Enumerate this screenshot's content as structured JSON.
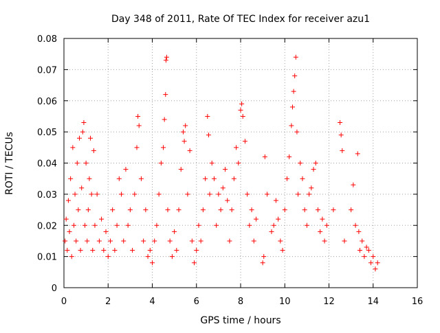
{
  "chart_data": {
    "type": "scatter",
    "title": "Day 348 of 2011, Rate Of TEC Index for receiver azu1",
    "xlabel": "GPS time / hours",
    "ylabel": "ROTI / TECUs",
    "xlim": [
      0,
      16
    ],
    "ylim": [
      0,
      0.08
    ],
    "xticks": [
      0,
      2,
      4,
      6,
      8,
      10,
      12,
      14,
      16
    ],
    "yticks": [
      0,
      0.01,
      0.02,
      0.03,
      0.04,
      0.05,
      0.06,
      0.07,
      0.08
    ],
    "xtick_labels": [
      "0",
      "2",
      "4",
      "6",
      "8",
      "10",
      "12",
      "14",
      "16"
    ],
    "ytick_labels": [
      "0",
      "0.01",
      "0.02",
      "0.03",
      "0.04",
      "0.05",
      "0.06",
      "0.07",
      "0.08"
    ],
    "grid": true,
    "marker": "+",
    "series": [
      {
        "name": "ROTI",
        "color": "#ff0000",
        "points": [
          [
            0.05,
            0.015
          ],
          [
            0.1,
            0.022
          ],
          [
            0.15,
            0.012
          ],
          [
            0.2,
            0.028
          ],
          [
            0.25,
            0.018
          ],
          [
            0.3,
            0.035
          ],
          [
            0.35,
            0.01
          ],
          [
            0.4,
            0.045
          ],
          [
            0.45,
            0.02
          ],
          [
            0.5,
            0.03
          ],
          [
            0.55,
            0.015
          ],
          [
            0.6,
            0.04
          ],
          [
            0.65,
            0.025
          ],
          [
            0.7,
            0.048
          ],
          [
            0.75,
            0.012
          ],
          [
            0.8,
            0.032
          ],
          [
            0.85,
            0.05
          ],
          [
            0.9,
            0.053
          ],
          [
            0.95,
            0.02
          ],
          [
            1.0,
            0.04
          ],
          [
            1.05,
            0.015
          ],
          [
            1.1,
            0.025
          ],
          [
            1.15,
            0.035
          ],
          [
            1.2,
            0.048
          ],
          [
            1.25,
            0.03
          ],
          [
            1.3,
            0.012
          ],
          [
            1.35,
            0.044
          ],
          [
            1.4,
            0.02
          ],
          [
            1.5,
            0.03
          ],
          [
            1.6,
            0.015
          ],
          [
            1.7,
            0.022
          ],
          [
            1.8,
            0.012
          ],
          [
            1.9,
            0.018
          ],
          [
            2.0,
            0.01
          ],
          [
            2.1,
            0.015
          ],
          [
            2.2,
            0.025
          ],
          [
            2.3,
            0.012
          ],
          [
            2.4,
            0.02
          ],
          [
            2.5,
            0.035
          ],
          [
            2.6,
            0.03
          ],
          [
            2.7,
            0.015
          ],
          [
            2.8,
            0.038
          ],
          [
            2.9,
            0.02
          ],
          [
            3.0,
            0.025
          ],
          [
            3.1,
            0.012
          ],
          [
            3.2,
            0.03
          ],
          [
            3.3,
            0.045
          ],
          [
            3.35,
            0.055
          ],
          [
            3.4,
            0.052
          ],
          [
            3.5,
            0.035
          ],
          [
            3.6,
            0.015
          ],
          [
            3.7,
            0.025
          ],
          [
            3.8,
            0.01
          ],
          [
            3.9,
            0.012
          ],
          [
            4.0,
            0.008
          ],
          [
            4.1,
            0.015
          ],
          [
            4.2,
            0.02
          ],
          [
            4.3,
            0.03
          ],
          [
            4.4,
            0.04
          ],
          [
            4.5,
            0.045
          ],
          [
            4.55,
            0.054
          ],
          [
            4.6,
            0.062
          ],
          [
            4.62,
            0.073
          ],
          [
            4.65,
            0.074
          ],
          [
            4.7,
            0.025
          ],
          [
            4.8,
            0.015
          ],
          [
            4.9,
            0.01
          ],
          [
            5.0,
            0.018
          ],
          [
            5.1,
            0.012
          ],
          [
            5.2,
            0.025
          ],
          [
            5.3,
            0.038
          ],
          [
            5.4,
            0.05
          ],
          [
            5.45,
            0.047
          ],
          [
            5.5,
            0.052
          ],
          [
            5.6,
            0.03
          ],
          [
            5.7,
            0.044
          ],
          [
            5.8,
            0.015
          ],
          [
            5.9,
            0.008
          ],
          [
            6.0,
            0.012
          ],
          [
            6.1,
            0.02
          ],
          [
            6.2,
            0.015
          ],
          [
            6.3,
            0.025
          ],
          [
            6.4,
            0.035
          ],
          [
            6.5,
            0.055
          ],
          [
            6.55,
            0.049
          ],
          [
            6.6,
            0.03
          ],
          [
            6.7,
            0.04
          ],
          [
            6.8,
            0.035
          ],
          [
            6.9,
            0.02
          ],
          [
            7.0,
            0.03
          ],
          [
            7.1,
            0.025
          ],
          [
            7.2,
            0.032
          ],
          [
            7.3,
            0.038
          ],
          [
            7.4,
            0.028
          ],
          [
            7.5,
            0.015
          ],
          [
            7.6,
            0.025
          ],
          [
            7.7,
            0.035
          ],
          [
            7.8,
            0.045
          ],
          [
            7.9,
            0.04
          ],
          [
            8.0,
            0.057
          ],
          [
            8.05,
            0.059
          ],
          [
            8.1,
            0.055
          ],
          [
            8.2,
            0.047
          ],
          [
            8.3,
            0.03
          ],
          [
            8.4,
            0.02
          ],
          [
            8.5,
            0.025
          ],
          [
            8.6,
            0.015
          ],
          [
            8.7,
            0.022
          ],
          [
            9.0,
            0.008
          ],
          [
            9.05,
            0.01
          ],
          [
            9.1,
            0.042
          ],
          [
            9.2,
            0.03
          ],
          [
            9.4,
            0.018
          ],
          [
            9.5,
            0.02
          ],
          [
            9.6,
            0.028
          ],
          [
            9.7,
            0.022
          ],
          [
            9.8,
            0.015
          ],
          [
            9.9,
            0.012
          ],
          [
            10.0,
            0.025
          ],
          [
            10.1,
            0.035
          ],
          [
            10.2,
            0.042
          ],
          [
            10.3,
            0.052
          ],
          [
            10.35,
            0.058
          ],
          [
            10.4,
            0.063
          ],
          [
            10.45,
            0.068
          ],
          [
            10.5,
            0.074
          ],
          [
            10.55,
            0.05
          ],
          [
            10.6,
            0.03
          ],
          [
            10.7,
            0.04
          ],
          [
            10.8,
            0.035
          ],
          [
            10.9,
            0.025
          ],
          [
            11.0,
            0.02
          ],
          [
            11.1,
            0.03
          ],
          [
            11.2,
            0.032
          ],
          [
            11.3,
            0.038
          ],
          [
            11.4,
            0.04
          ],
          [
            11.5,
            0.025
          ],
          [
            11.6,
            0.018
          ],
          [
            11.7,
            0.022
          ],
          [
            11.8,
            0.015
          ],
          [
            11.9,
            0.02
          ],
          [
            12.2,
            0.025
          ],
          [
            12.5,
            0.053
          ],
          [
            12.55,
            0.049
          ],
          [
            12.6,
            0.044
          ],
          [
            12.7,
            0.015
          ],
          [
            13.0,
            0.025
          ],
          [
            13.1,
            0.033
          ],
          [
            13.2,
            0.02
          ],
          [
            13.3,
            0.043
          ],
          [
            13.35,
            0.018
          ],
          [
            13.4,
            0.012
          ],
          [
            13.5,
            0.015
          ],
          [
            13.6,
            0.01
          ],
          [
            13.7,
            0.013
          ],
          [
            13.8,
            0.012
          ],
          [
            13.9,
            0.008
          ],
          [
            14.0,
            0.01
          ],
          [
            14.1,
            0.006
          ],
          [
            14.2,
            0.008
          ]
        ]
      }
    ]
  }
}
